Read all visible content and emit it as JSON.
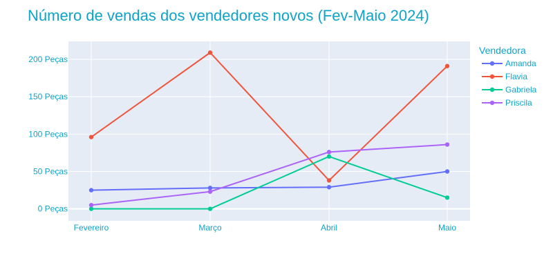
{
  "colors": {
    "text": "#0fa3c9",
    "plot_bg": "#e5ecf6",
    "grid": "#ffffff"
  },
  "chart_data": {
    "type": "line",
    "title": "Número de vendas dos vendedores novos (Fev-Maio 2024)",
    "xlabel": "",
    "ylabel": "",
    "categories": [
      "Fevereiro",
      "Março",
      "Abril",
      "Maio"
    ],
    "y_tick_values": [
      0,
      50,
      100,
      150,
      200
    ],
    "y_tick_labels": [
      "0 Peças",
      "50 Peças",
      "100 Peças",
      "150 Peças",
      "200 Peças"
    ],
    "ylim": [
      -16,
      224
    ],
    "grid": true,
    "legend": {
      "title": "Vendedora",
      "placement": "right"
    },
    "series": [
      {
        "name": "Amanda",
        "color": "#636efa",
        "values": [
          25,
          28,
          29,
          50
        ]
      },
      {
        "name": "Flavia",
        "color": "#ef553b",
        "values": [
          96,
          209,
          38,
          191
        ]
      },
      {
        "name": "Gabriela",
        "color": "#00cc96",
        "values": [
          0,
          0,
          70,
          15
        ]
      },
      {
        "name": "Priscila",
        "color": "#ab63fa",
        "values": [
          5,
          23,
          76,
          86
        ]
      }
    ]
  }
}
